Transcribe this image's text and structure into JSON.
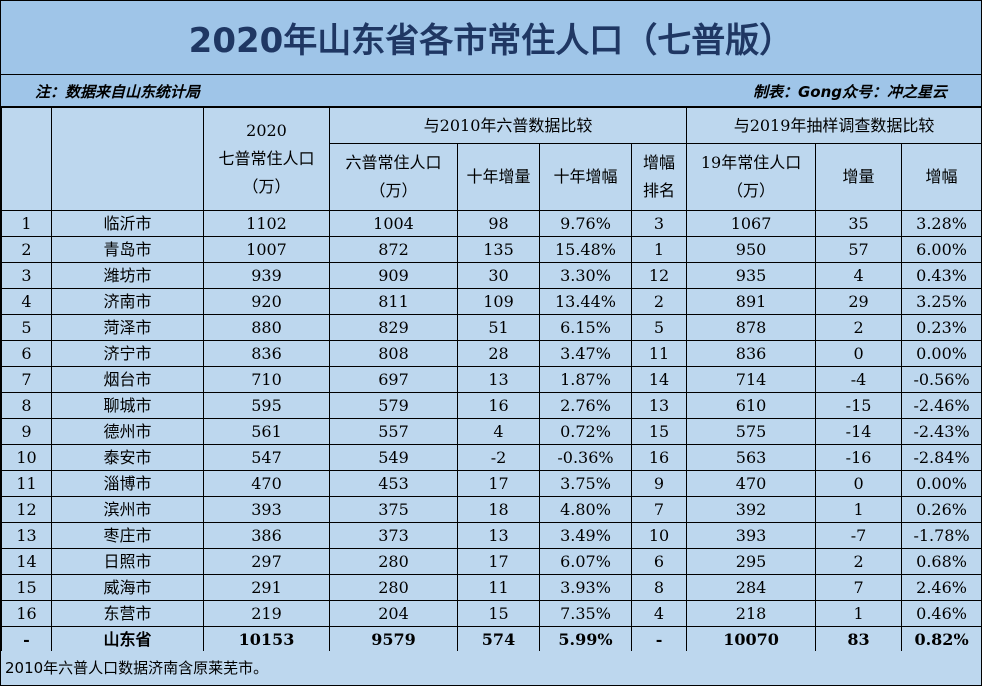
{
  "title": "2020年山东省各市常住人口（七普版）",
  "note_left": "注：数据来自山东统计局",
  "note_right": "制表：Gong众号：冲之星云",
  "header": {
    "col_2020_year": "2020",
    "col_2020_label": "七普常住人口",
    "col_2020_unit": "（万）",
    "group_2010": "与2010年六普数据比较",
    "group_2019": "与2019年抽样调查数据比较",
    "col_6pu_label": "六普常住人口",
    "col_6pu_unit": "（万）",
    "col_decade_increase": "十年增量",
    "col_decade_rate": "十年增幅",
    "col_rank_1": "增幅",
    "col_rank_2": "排名",
    "col_2019_label": "19年常住人口",
    "col_2019_unit": "（万）",
    "col_increase": "增量",
    "col_rate": "增幅"
  },
  "rows": [
    {
      "no": "1",
      "city": "临沂市",
      "pop2020": "1102",
      "pop2010": "1004",
      "inc10": "98",
      "rate10": "9.76%",
      "rank": "3",
      "pop2019": "1067",
      "inc19": "35",
      "rate19": "3.28%"
    },
    {
      "no": "2",
      "city": "青岛市",
      "pop2020": "1007",
      "pop2010": "872",
      "inc10": "135",
      "rate10": "15.48%",
      "rank": "1",
      "pop2019": "950",
      "inc19": "57",
      "rate19": "6.00%"
    },
    {
      "no": "3",
      "city": "潍坊市",
      "pop2020": "939",
      "pop2010": "909",
      "inc10": "30",
      "rate10": "3.30%",
      "rank": "12",
      "pop2019": "935",
      "inc19": "4",
      "rate19": "0.43%"
    },
    {
      "no": "4",
      "city": "济南市",
      "pop2020": "920",
      "pop2010": "811",
      "inc10": "109",
      "rate10": "13.44%",
      "rank": "2",
      "pop2019": "891",
      "inc19": "29",
      "rate19": "3.25%"
    },
    {
      "no": "5",
      "city": "菏泽市",
      "pop2020": "880",
      "pop2010": "829",
      "inc10": "51",
      "rate10": "6.15%",
      "rank": "5",
      "pop2019": "878",
      "inc19": "2",
      "rate19": "0.23%"
    },
    {
      "no": "6",
      "city": "济宁市",
      "pop2020": "836",
      "pop2010": "808",
      "inc10": "28",
      "rate10": "3.47%",
      "rank": "11",
      "pop2019": "836",
      "inc19": "0",
      "rate19": "0.00%"
    },
    {
      "no": "7",
      "city": "烟台市",
      "pop2020": "710",
      "pop2010": "697",
      "inc10": "13",
      "rate10": "1.87%",
      "rank": "14",
      "pop2019": "714",
      "inc19": "-4",
      "rate19": "-0.56%"
    },
    {
      "no": "8",
      "city": "聊城市",
      "pop2020": "595",
      "pop2010": "579",
      "inc10": "16",
      "rate10": "2.76%",
      "rank": "13",
      "pop2019": "610",
      "inc19": "-15",
      "rate19": "-2.46%"
    },
    {
      "no": "9",
      "city": "德州市",
      "pop2020": "561",
      "pop2010": "557",
      "inc10": "4",
      "rate10": "0.72%",
      "rank": "15",
      "pop2019": "575",
      "inc19": "-14",
      "rate19": "-2.43%"
    },
    {
      "no": "10",
      "city": "泰安市",
      "pop2020": "547",
      "pop2010": "549",
      "inc10": "-2",
      "rate10": "-0.36%",
      "rank": "16",
      "pop2019": "563",
      "inc19": "-16",
      "rate19": "-2.84%"
    },
    {
      "no": "11",
      "city": "淄博市",
      "pop2020": "470",
      "pop2010": "453",
      "inc10": "17",
      "rate10": "3.75%",
      "rank": "9",
      "pop2019": "470",
      "inc19": "0",
      "rate19": "0.00%"
    },
    {
      "no": "12",
      "city": "滨州市",
      "pop2020": "393",
      "pop2010": "375",
      "inc10": "18",
      "rate10": "4.80%",
      "rank": "7",
      "pop2019": "392",
      "inc19": "1",
      "rate19": "0.26%"
    },
    {
      "no": "13",
      "city": "枣庄市",
      "pop2020": "386",
      "pop2010": "373",
      "inc10": "13",
      "rate10": "3.49%",
      "rank": "10",
      "pop2019": "393",
      "inc19": "-7",
      "rate19": "-1.78%"
    },
    {
      "no": "14",
      "city": "日照市",
      "pop2020": "297",
      "pop2010": "280",
      "inc10": "17",
      "rate10": "6.07%",
      "rank": "6",
      "pop2019": "295",
      "inc19": "2",
      "rate19": "0.68%"
    },
    {
      "no": "15",
      "city": "威海市",
      "pop2020": "291",
      "pop2010": "280",
      "inc10": "11",
      "rate10": "3.93%",
      "rank": "8",
      "pop2019": "284",
      "inc19": "7",
      "rate19": "2.46%"
    },
    {
      "no": "16",
      "city": "东营市",
      "pop2020": "219",
      "pop2010": "204",
      "inc10": "15",
      "rate10": "7.35%",
      "rank": "4",
      "pop2019": "218",
      "inc19": "1",
      "rate19": "0.46%"
    }
  ],
  "total": {
    "no": "-",
    "city": "山东省",
    "pop2020": "10153",
    "pop2010": "9579",
    "inc10": "574",
    "rate10": "5.99%",
    "rank": "-",
    "pop2019": "10070",
    "inc19": "83",
    "rate19": "0.82%"
  },
  "footer": "2010年六普人口数据济南含原莱芜市。",
  "colors": {
    "title_bg": "#9fc5e8",
    "sheet_bg": "#bdd7ee",
    "title_text": "#1f3763"
  }
}
